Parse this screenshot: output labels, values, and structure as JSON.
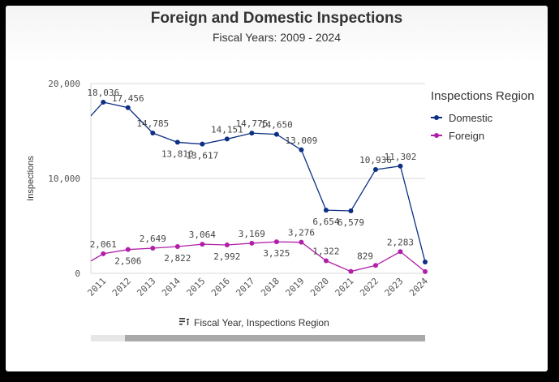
{
  "header": {
    "title": "Foreign and Domestic Inspections",
    "subtitle": "Fiscal Years: 2009 - 2024"
  },
  "legend": {
    "title": "Inspections Region",
    "items": [
      {
        "label": "Domestic",
        "color": "#0d2f84"
      },
      {
        "label": "Foreign",
        "color": "#b01fa8"
      }
    ]
  },
  "xaxis_caption": "Fiscal Year, Inspections Region",
  "chart_data": {
    "type": "line",
    "title": "Foreign and Domestic Inspections",
    "subtitle": "Fiscal Years: 2009 - 2024",
    "xlabel": "Fiscal Year, Inspections Region",
    "ylabel": "Inspections",
    "categories": [
      "2011",
      "2012",
      "2013",
      "2014",
      "2015",
      "2016",
      "2017",
      "2018",
      "2019",
      "2020",
      "2021",
      "2022",
      "2023",
      "2024"
    ],
    "ylim": [
      0,
      20000
    ],
    "yticks": [
      0,
      10000,
      20000
    ],
    "ytick_labels": [
      "0",
      "10,000",
      "20,000"
    ],
    "grid": true,
    "legend_position": "right",
    "series": [
      {
        "name": "Domestic",
        "color": "#0d2f84",
        "values": [
          18036,
          17456,
          14785,
          13810,
          13617,
          14151,
          14775,
          14650,
          13009,
          6654,
          6579,
          10936,
          11302,
          1200
        ],
        "labels": [
          "18,036",
          "17,456",
          "14,785",
          "13,810",
          "13,617",
          "14,151",
          "14,775",
          "14,650",
          "13,009",
          "6,654",
          "6,579",
          "10,936",
          "11,302",
          ""
        ],
        "label_positions": [
          "above",
          "above",
          "above",
          "below",
          "below",
          "above",
          "above",
          "above",
          "above",
          "below",
          "below",
          "above",
          "above",
          "none"
        ],
        "lead_in_value": 16600
      },
      {
        "name": "Foreign",
        "color": "#b01fa8",
        "values": [
          2061,
          2506,
          2649,
          2822,
          3064,
          2992,
          3169,
          3325,
          3276,
          1322,
          200,
          829,
          2283,
          180
        ],
        "labels": [
          "2,061",
          "2,506",
          "2,649",
          "2,822",
          "3,064",
          "2,992",
          "3,169",
          "3,325",
          "3,276",
          "1,322",
          "",
          "829",
          "2,283",
          ""
        ],
        "label_positions": [
          "above",
          "below",
          "above",
          "below",
          "above",
          "below",
          "above",
          "below",
          "above",
          "above",
          "none",
          "above-left",
          "above",
          "none"
        ],
        "lead_in_value": 1300
      }
    ]
  }
}
